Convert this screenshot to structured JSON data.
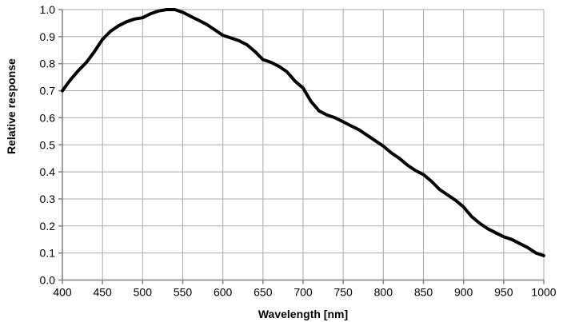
{
  "chart_data": {
    "type": "line",
    "title": "",
    "xlabel": "Wavelength [nm]",
    "ylabel": "Relative response",
    "x": [
      400,
      410,
      420,
      430,
      440,
      450,
      460,
      470,
      480,
      490,
      500,
      510,
      520,
      530,
      540,
      550,
      560,
      570,
      580,
      590,
      600,
      610,
      620,
      630,
      640,
      650,
      660,
      670,
      680,
      690,
      700,
      710,
      720,
      730,
      740,
      750,
      760,
      770,
      780,
      790,
      800,
      810,
      820,
      830,
      840,
      850,
      860,
      870,
      880,
      890,
      900,
      910,
      920,
      930,
      940,
      950,
      960,
      970,
      980,
      990,
      1000
    ],
    "y": [
      0.7,
      0.74,
      0.775,
      0.805,
      0.845,
      0.89,
      0.92,
      0.94,
      0.955,
      0.965,
      0.97,
      0.985,
      0.995,
      1.0,
      1.0,
      0.99,
      0.975,
      0.96,
      0.945,
      0.925,
      0.905,
      0.895,
      0.885,
      0.87,
      0.845,
      0.815,
      0.805,
      0.79,
      0.77,
      0.735,
      0.71,
      0.66,
      0.625,
      0.61,
      0.6,
      0.585,
      0.57,
      0.555,
      0.535,
      0.515,
      0.495,
      0.47,
      0.45,
      0.425,
      0.405,
      0.39,
      0.365,
      0.335,
      0.315,
      0.295,
      0.27,
      0.235,
      0.21,
      0.19,
      0.175,
      0.16,
      0.15,
      0.135,
      0.12,
      0.1,
      0.09
    ],
    "xlim": [
      400,
      1000
    ],
    "ylim": [
      0.0,
      1.0
    ],
    "x_ticks": [
      400,
      450,
      500,
      550,
      600,
      650,
      700,
      750,
      800,
      850,
      900,
      950,
      1000
    ],
    "y_ticks": [
      0.0,
      0.1,
      0.2,
      0.3,
      0.4,
      0.5,
      0.6,
      0.7,
      0.8,
      0.9,
      1.0
    ],
    "grid": true,
    "legend": false,
    "line_color": "#000000",
    "line_width": 4,
    "grid_color": "#a8a8a8",
    "axis_color": "#808080",
    "tick_label_color": "#000000",
    "background_color": "#ffffff"
  }
}
